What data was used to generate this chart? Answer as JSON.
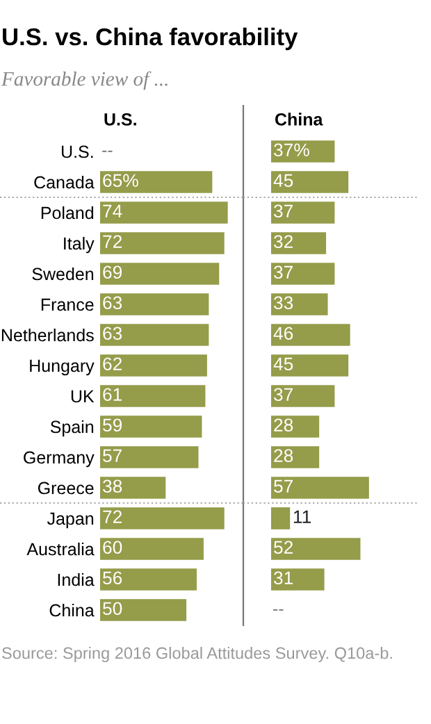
{
  "chart_data": [
    {
      "type": "bar",
      "orientation": "horizontal",
      "title": "U.S. vs. China favorability",
      "subtitle": "Favorable view of ...",
      "categories": [
        "U.S.",
        "Canada",
        "Poland",
        "Italy",
        "Sweden",
        "France",
        "Netherlands",
        "Hungary",
        "UK",
        "Spain",
        "Germany",
        "Greece",
        "Japan",
        "Australia",
        "India",
        "China"
      ],
      "series": [
        {
          "name": "U.S.",
          "color": "#959c4a",
          "values": [
            null,
            65,
            74,
            72,
            69,
            63,
            63,
            62,
            61,
            59,
            57,
            38,
            72,
            60,
            56,
            50
          ],
          "value_labels": [
            "--",
            "65%",
            "74",
            "72",
            "69",
            "63",
            "63",
            "62",
            "61",
            "59",
            "57",
            "38",
            "72",
            "60",
            "56",
            "50"
          ]
        }
      ],
      "xlim": [
        0,
        83
      ],
      "tick_labels": "y",
      "grid": false,
      "legend": false,
      "annotations": [
        "Source: Spring 2016 Global Attitudes Survey. Q10a-b."
      ]
    },
    {
      "type": "bar",
      "orientation": "horizontal",
      "categories": [
        null,
        null,
        null,
        null,
        null,
        null,
        null,
        null,
        null,
        null,
        null,
        null,
        null,
        null,
        null,
        null
      ],
      "series": [
        {
          "name": "China",
          "color": "#959c4a",
          "values": [
            37,
            45,
            37,
            32,
            37,
            33,
            46,
            45,
            37,
            28,
            28,
            57,
            11,
            52,
            31,
            null
          ],
          "value_labels": [
            "37%",
            "45",
            "37",
            "32",
            "37",
            "33",
            "46",
            "45",
            "37",
            "28",
            "28",
            "57",
            "11",
            "52",
            "31",
            "--"
          ]
        }
      ],
      "xlim": [
        0,
        85
      ],
      "tick_labels": false,
      "grid": false,
      "legend": false
    }
  ]
}
